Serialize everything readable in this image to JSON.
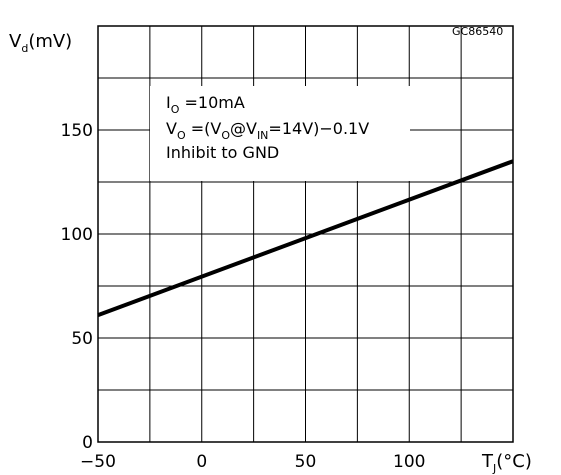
{
  "chart_data": {
    "type": "line",
    "figure_id": "GC86540",
    "ylabel": {
      "main": "V",
      "sub": "d",
      "unit": "(mV)"
    },
    "xlabel": {
      "main": "T",
      "sub": "J",
      "unit": "(°C)"
    },
    "xlim": [
      -50,
      150
    ],
    "ylim": [
      0,
      200
    ],
    "x_grid_step": 25,
    "y_grid_step": 25,
    "grid": true,
    "x_ticks": [
      {
        "value": -50,
        "label": "−50"
      },
      {
        "value": 0,
        "label": "0"
      },
      {
        "value": 50,
        "label": "50"
      },
      {
        "value": 100,
        "label": "100"
      }
    ],
    "y_ticks": [
      {
        "value": 0,
        "label": "0"
      },
      {
        "value": 50,
        "label": "50"
      },
      {
        "value": 100,
        "label": "100"
      },
      {
        "value": 150,
        "label": "150"
      }
    ],
    "series": [
      {
        "x": [
          -50,
          150
        ],
        "y": [
          61,
          135
        ]
      }
    ],
    "annotations": [
      {
        "main": "I",
        "sub": "O",
        "rest": " =10mA"
      },
      {
        "main": "V",
        "sub": "O",
        "rest": " =(V",
        "sub2": "O",
        "mid": "@V",
        "sub3": "IN",
        "tail": "=14V)−0.1V"
      },
      {
        "text": "Inhibit to GND"
      }
    ]
  }
}
